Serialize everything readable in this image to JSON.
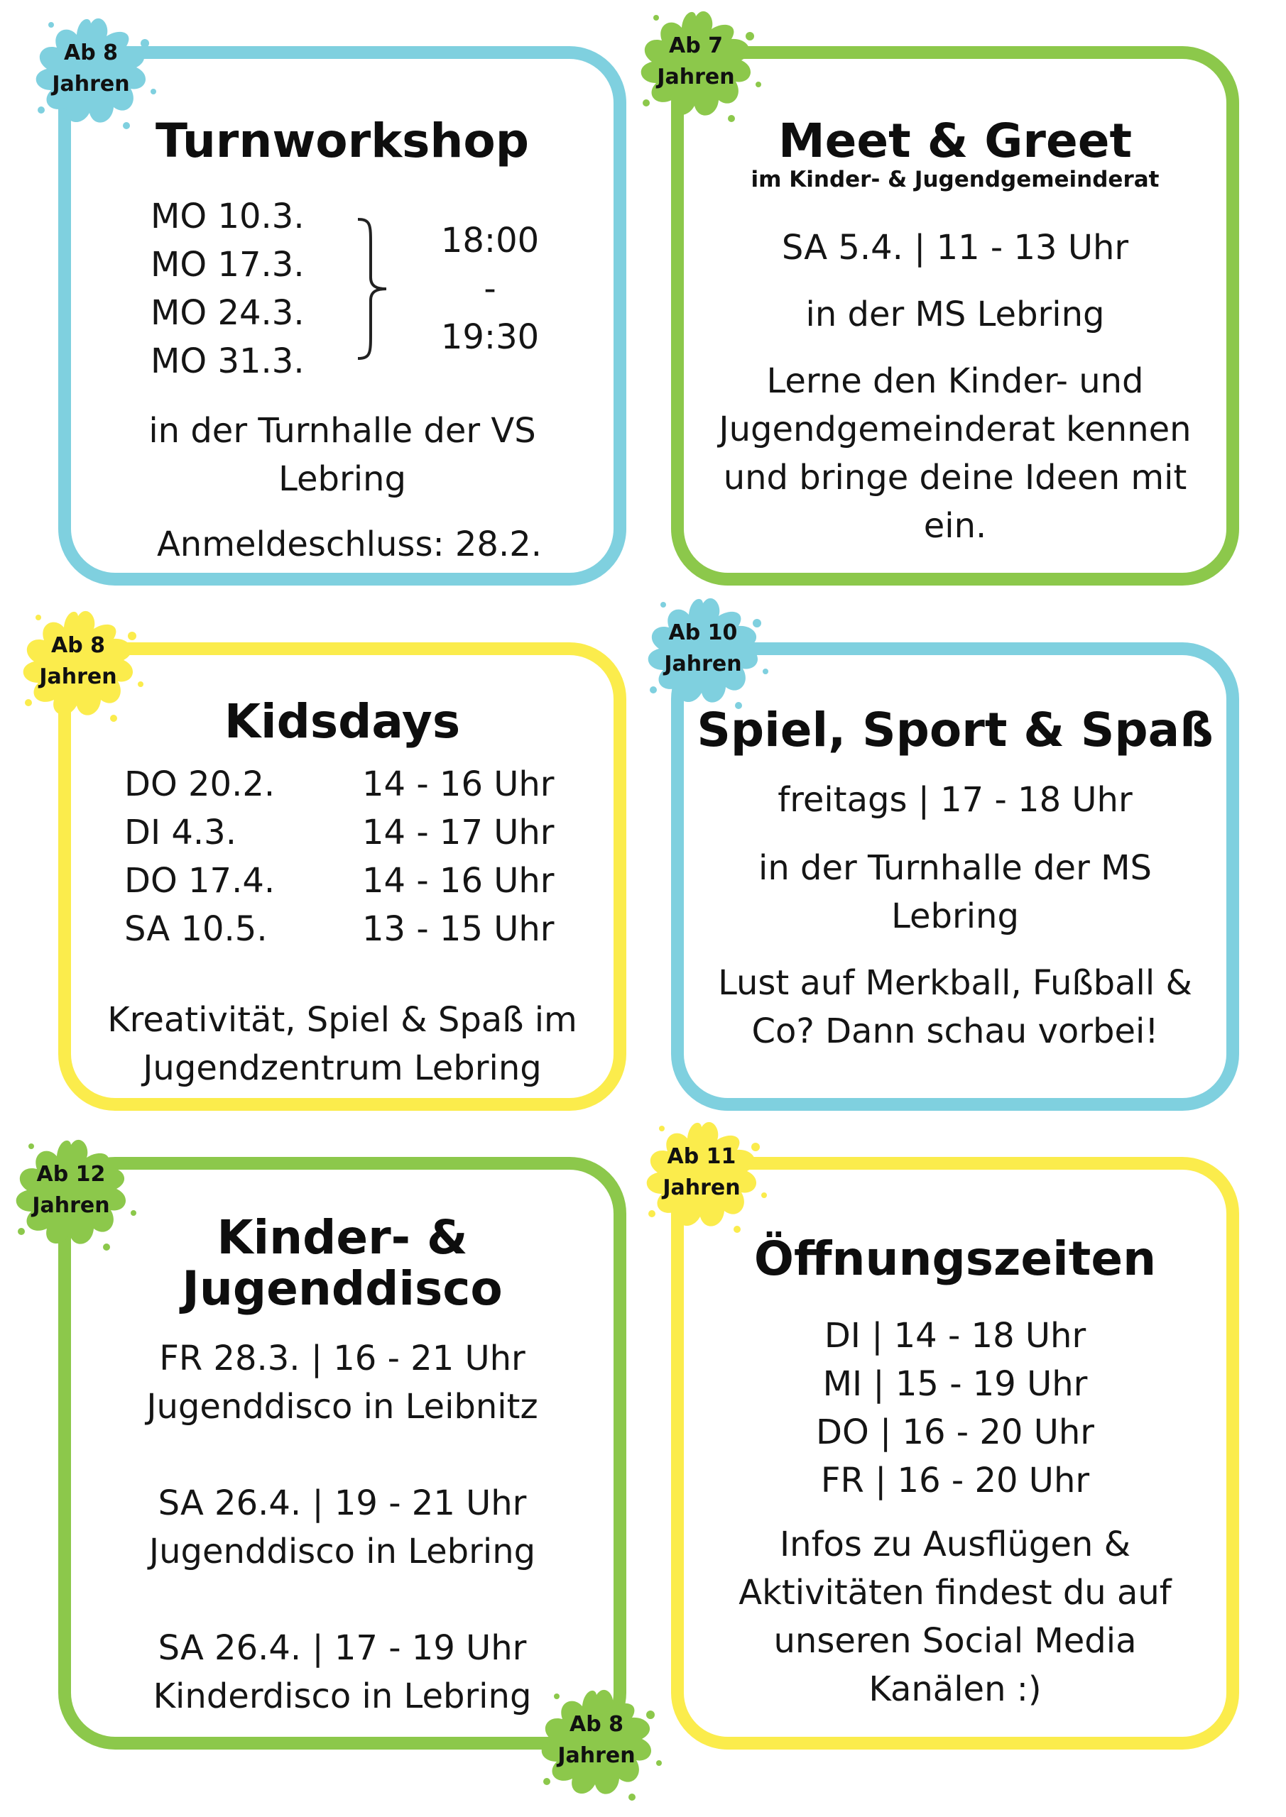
{
  "colors": {
    "blue": "#7fd0df",
    "green": "#8cc84b",
    "yellow": "#fbec4c"
  },
  "turnworkshop": {
    "badge": [
      "Ab 8",
      "Jahren"
    ],
    "title": "Turnworkshop",
    "dates": [
      "MO 10.3.",
      "MO 17.3.",
      "MO 24.3.",
      "MO 31.3."
    ],
    "time_start": "18:00",
    "time_sep": "-",
    "time_end": "19:30",
    "location": [
      "in der Turnhalle der VS",
      "Lebring"
    ],
    "deadline": "Anmeldeschluss: 28.2."
  },
  "meet_greet": {
    "badge": [
      "Ab 7",
      "Jahren"
    ],
    "title": "Meet & Greet",
    "subtitle": "im Kinder- & Jugendgemeinderat",
    "when": "SA 5.4. | 11 - 13 Uhr",
    "where": "in der MS Lebring",
    "desc": [
      "Lerne den Kinder- und",
      "Jugendgemeinderat kennen",
      "und bringe deine Ideen mit",
      "ein."
    ]
  },
  "kidsdays": {
    "badge": [
      "Ab 8",
      "Jahren"
    ],
    "title": "Kidsdays",
    "rows": [
      {
        "day": "DO 20.2.",
        "time": "14 - 16 Uhr"
      },
      {
        "day": "DI 4.3.",
        "time": "14 - 17 Uhr"
      },
      {
        "day": "DO 17.4.",
        "time": "14 - 16 Uhr"
      },
      {
        "day": "SA 10.5.",
        "time": "13 - 15 Uhr"
      }
    ],
    "desc": [
      "Kreativität, Spiel & Spaß im",
      "Jugendzentrum Lebring"
    ]
  },
  "spiel_sport": {
    "badge": [
      "Ab 10",
      "Jahren"
    ],
    "title": "Spiel, Sport & Spaß",
    "when": "freitags | 17 - 18 Uhr",
    "where": [
      "in der Turnhalle der MS",
      "Lebring"
    ],
    "desc": [
      "Lust auf Merkball, Fußball &",
      "Co? Dann schau vorbei!"
    ]
  },
  "disco": {
    "badge_top": [
      "Ab 12",
      "Jahren"
    ],
    "badge_bottom": [
      "Ab 8",
      "Jahren"
    ],
    "title": [
      "Kinder- &",
      "Jugenddisco"
    ],
    "events": [
      {
        "when": "FR 28.3. | 16 - 21 Uhr",
        "what": "Jugenddisco in Leibnitz"
      },
      {
        "when": "SA 26.4. | 19 - 21 Uhr",
        "what": "Jugenddisco in Lebring"
      },
      {
        "when": "SA 26.4. | 17 - 19 Uhr",
        "what": "Kinderdisco in Lebring"
      }
    ]
  },
  "oeffnung": {
    "badge": [
      "Ab 11",
      "Jahren"
    ],
    "title": "Öffnungszeiten",
    "hours": [
      "DI | 14 - 18 Uhr",
      "MI | 15 - 19 Uhr",
      "DO | 16 - 20 Uhr",
      "FR | 16 - 20 Uhr"
    ],
    "desc": [
      "Infos zu Ausflügen &",
      "Aktivitäten findest du auf",
      "unseren Social Media",
      "Kanälen :)"
    ]
  }
}
